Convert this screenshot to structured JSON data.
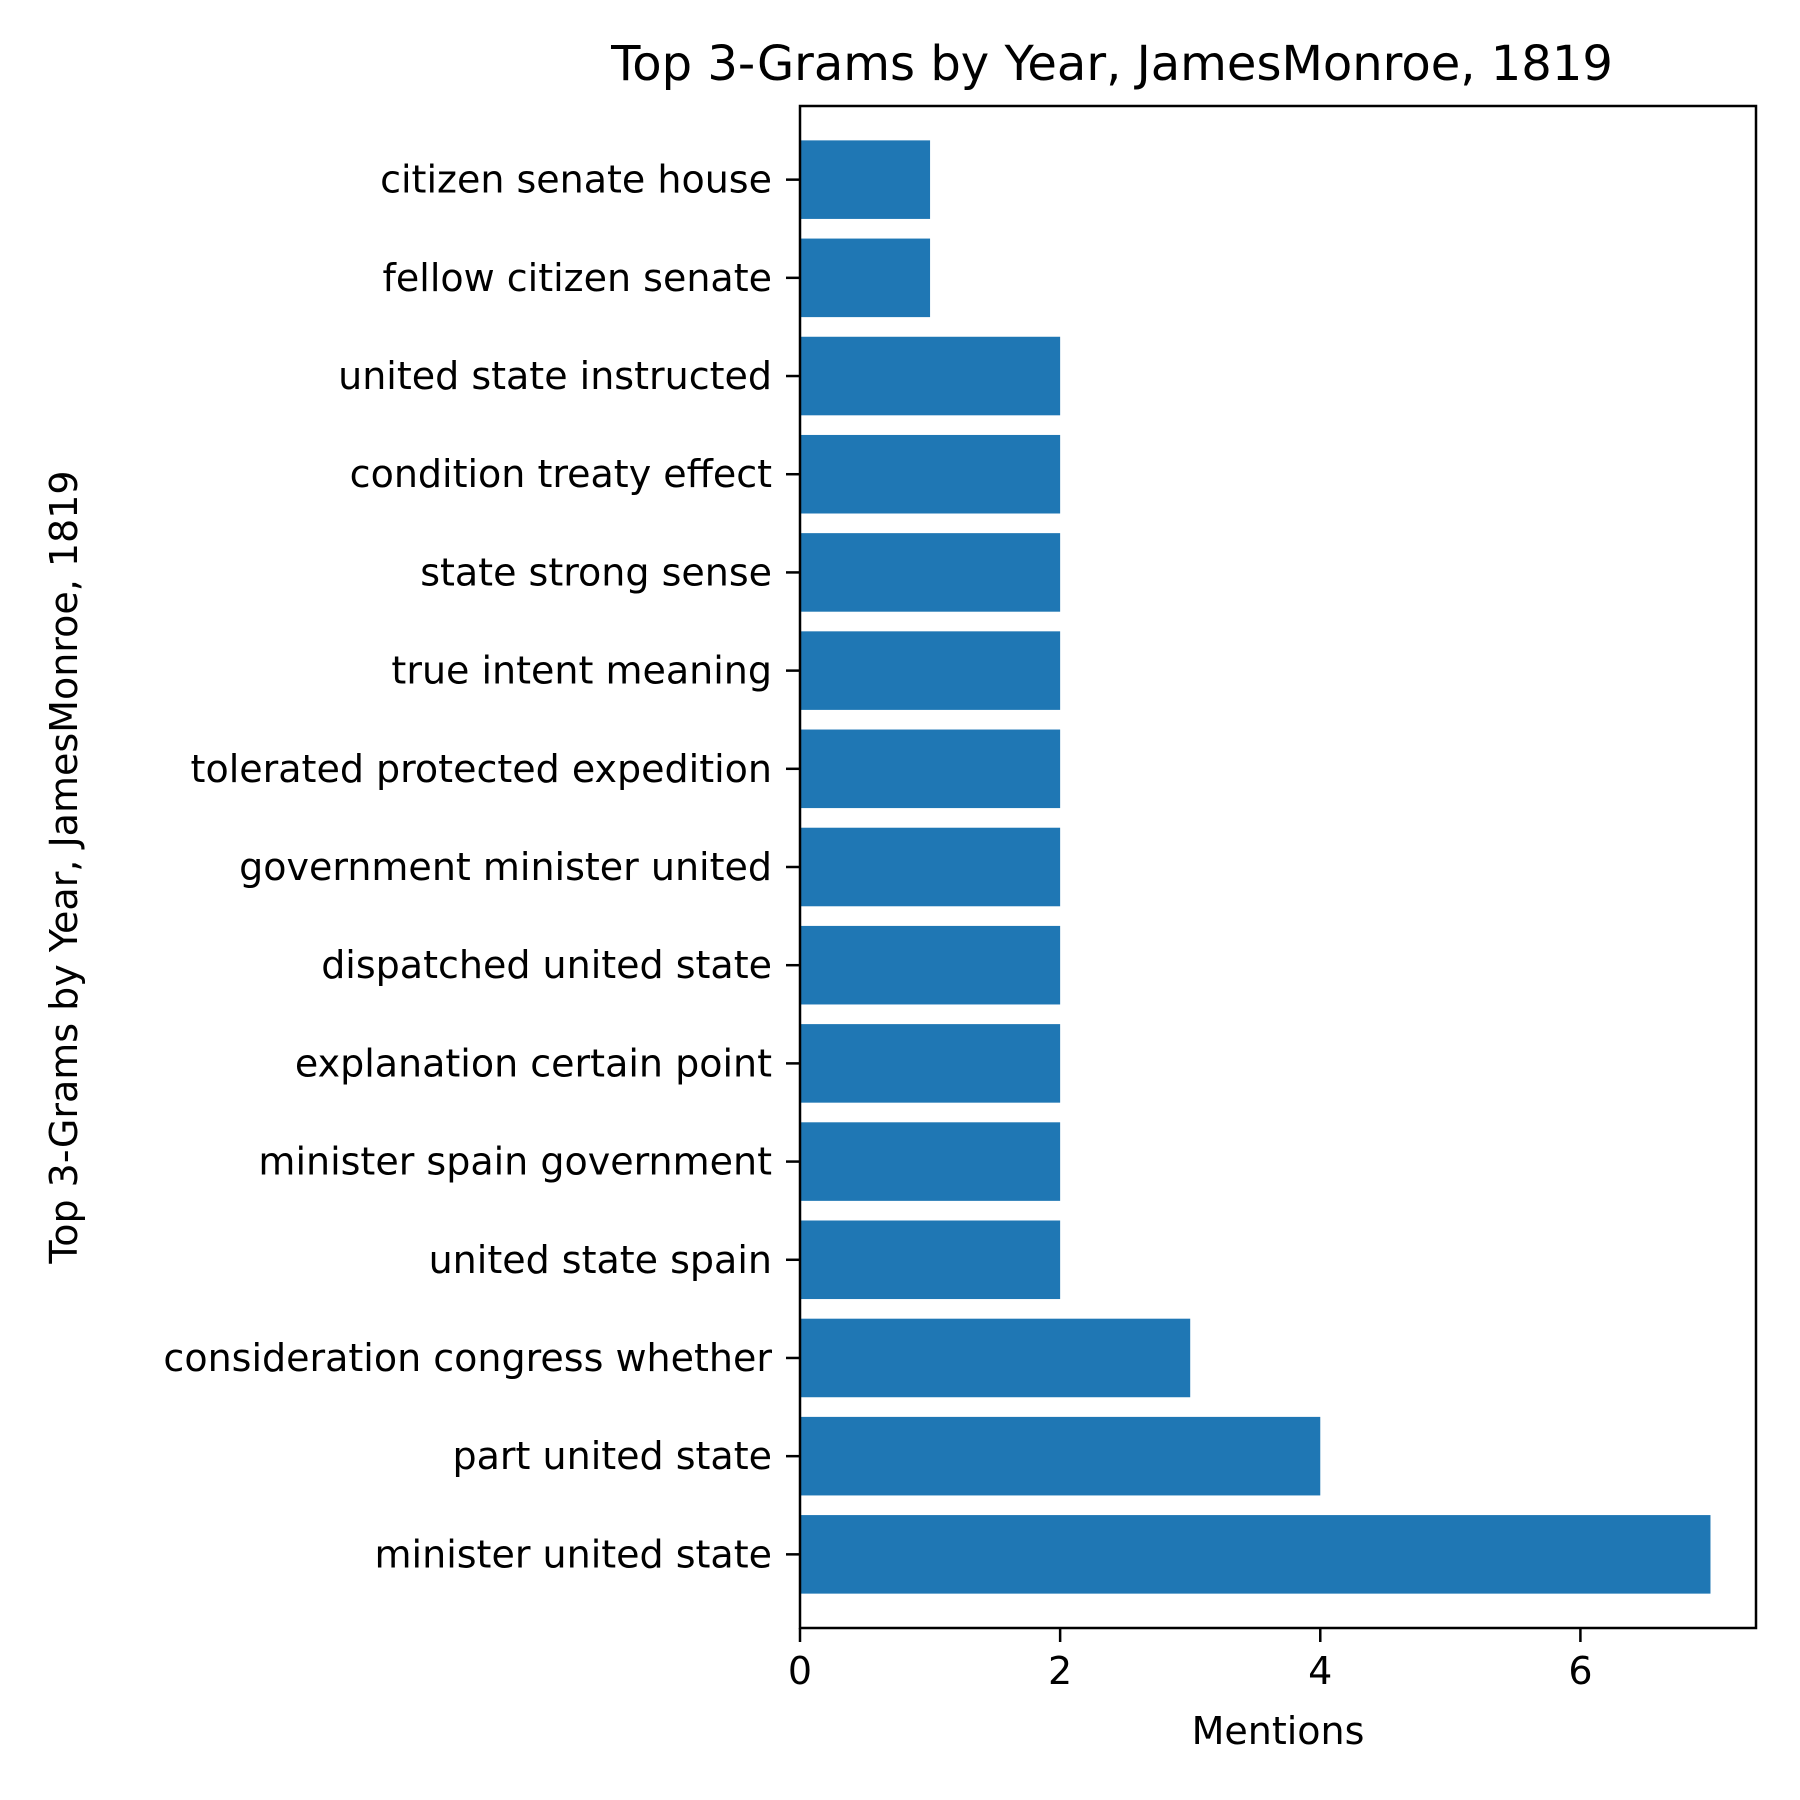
{
  "chart_data": {
    "type": "bar",
    "orientation": "horizontal",
    "title": "Top 3-Grams by Year, JamesMonroe, 1819",
    "xlabel": "Mentions",
    "ylabel": "Top 3-Grams by Year, JamesMonroe, 1819",
    "xlim": [
      0,
      7.35
    ],
    "xticks": [
      0,
      2,
      4,
      6
    ],
    "grid": false,
    "bar_color": "#1f77b4",
    "categories": [
      "minister united state",
      "part united state",
      "consideration congress whether",
      "united state spain",
      "minister spain government",
      "explanation certain point",
      "dispatched united state",
      "government minister united",
      "tolerated protected expedition",
      "true intent meaning",
      "state strong sense",
      "condition treaty effect",
      "united state instructed",
      "fellow citizen senate",
      "citizen senate house"
    ],
    "values": [
      7,
      4,
      3,
      2,
      2,
      2,
      2,
      2,
      2,
      2,
      2,
      2,
      2,
      1,
      1
    ]
  }
}
